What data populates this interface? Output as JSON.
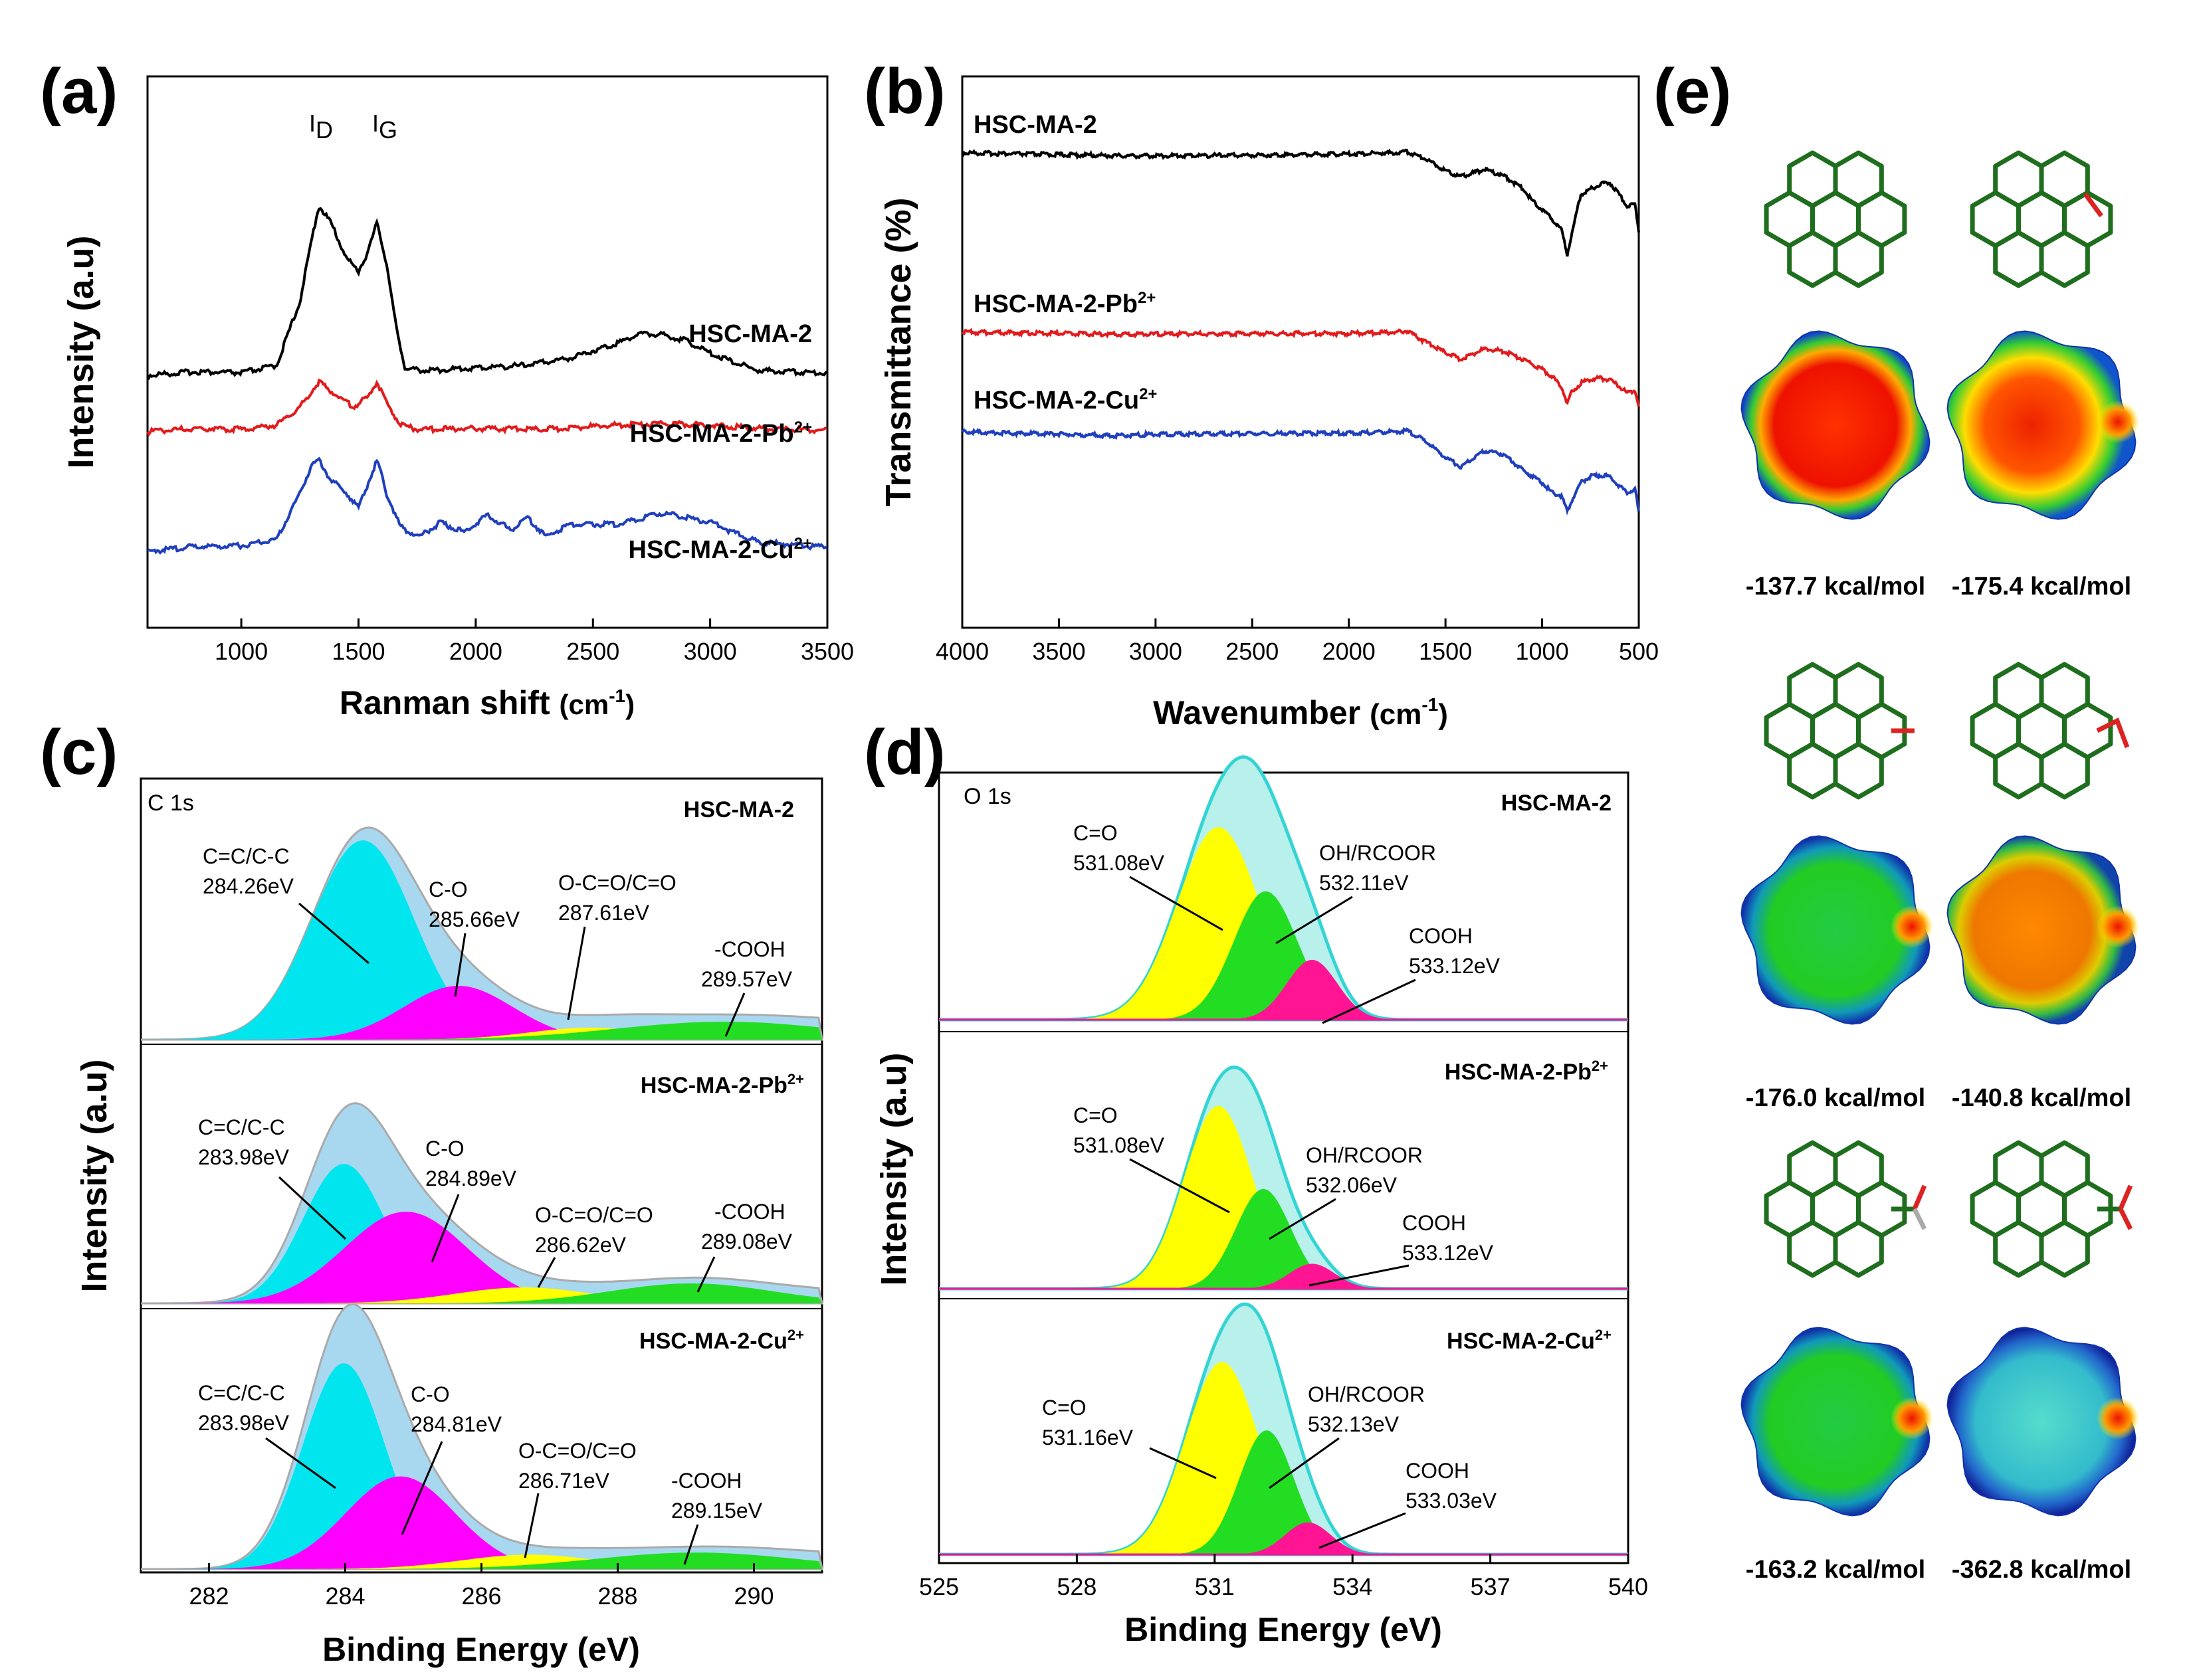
{
  "chart_data": [
    {
      "panel": "(a)",
      "type": "line",
      "xlabel": "Ranman shift",
      "xunit": "(cm",
      "xunit_exp": "-1",
      "xunit_close": ")",
      "ylabel": "Intensity (a.u)",
      "xlim": [
        600,
        3500
      ],
      "xticks": [
        "1000",
        "1500",
        "2000",
        "2500",
        "3000",
        "3500"
      ],
      "peak_d": "I",
      "peak_d_sub": "D",
      "peak_g": "I",
      "peak_g_sub": "G",
      "series": [
        {
          "name": "HSC-MA-2",
          "sup": "",
          "color": "#000000",
          "x": [
            600,
            800,
            1000,
            1150,
            1250,
            1300,
            1330,
            1380,
            1450,
            1500,
            1540,
            1580,
            1620,
            1660,
            1700,
            1800,
            2000,
            2200,
            2400,
            2600,
            2700,
            2800,
            2900,
            3000,
            3200,
            3500
          ],
          "y": [
            0,
            3,
            2,
            8,
            60,
            110,
            138,
            125,
            95,
            85,
            100,
            125,
            90,
            40,
            5,
            4,
            6,
            8,
            14,
            26,
            34,
            33,
            28,
            18,
            4,
            2
          ]
        },
        {
          "name": "HSC-MA-2-Pb",
          "sup": "2+",
          "color": "#e31a1c",
          "x": [
            600,
            800,
            1000,
            1150,
            1250,
            1330,
            1400,
            1480,
            1540,
            1580,
            1620,
            1680,
            1750,
            2000,
            2300,
            2600,
            2800,
            3000,
            3200,
            3500
          ],
          "y": [
            0,
            4,
            3,
            8,
            30,
            60,
            45,
            30,
            42,
            60,
            35,
            8,
            3,
            4,
            3,
            8,
            10,
            8,
            4,
            2
          ]
        },
        {
          "name": "HSC-MA-2-Cu",
          "sup": "2+",
          "color": "#1f3fbf",
          "x": [
            600,
            800,
            1000,
            1150,
            1250,
            1300,
            1330,
            1380,
            1450,
            1500,
            1540,
            1580,
            1620,
            1680,
            1760,
            1850,
            1950,
            2050,
            2150,
            2220,
            2300,
            2400,
            2600,
            2800,
            3000,
            3200,
            3500
          ],
          "y": [
            0,
            5,
            6,
            12,
            60,
            90,
            95,
            75,
            60,
            45,
            70,
            95,
            60,
            25,
            15,
            30,
            20,
            38,
            22,
            35,
            15,
            28,
            28,
            40,
            30,
            10,
            4
          ]
        }
      ]
    },
    {
      "panel": "(b)",
      "type": "line",
      "xlabel": "Wavenumber",
      "xunit": "(cm",
      "xunit_exp": "-1",
      "xunit_close": ")",
      "ylabel": "Transmittance (%)",
      "xlim": [
        4000,
        500
      ],
      "xreverse": true,
      "xticks": [
        "4000",
        "3500",
        "3000",
        "2500",
        "2000",
        "1500",
        "1000",
        "500"
      ],
      "series": [
        {
          "name": "HSC-MA-2",
          "sup": "",
          "color": "#000000",
          "x": [
            4000,
            3500,
            3200,
            3000,
            2500,
            2000,
            1750,
            1700,
            1600,
            1500,
            1420,
            1300,
            1200,
            1100,
            1050,
            950,
            900,
            870,
            850,
            800,
            700,
            650,
            600,
            560,
            520,
            500
          ],
          "y": [
            100,
            97,
            95,
            95,
            96,
            98,
            100,
            102,
            90,
            70,
            60,
            72,
            62,
            40,
            20,
            -10,
            -30,
            -70,
            -40,
            30,
            48,
            50,
            30,
            10,
            15,
            -30
          ]
        },
        {
          "name": "HSC-MA-2-Pb",
          "sup": "2+",
          "color": "#e31a1c",
          "x": [
            4000,
            3500,
            3200,
            3000,
            2500,
            2000,
            1750,
            1700,
            1600,
            1500,
            1420,
            1300,
            1200,
            1100,
            1000,
            950,
            900,
            870,
            850,
            800,
            750,
            700,
            650,
            600,
            560,
            520,
            500
          ],
          "y": [
            100,
            98,
            97,
            97,
            98,
            98,
            100,
            102,
            85,
            70,
            60,
            75,
            72,
            60,
            45,
            35,
            20,
            -5,
            10,
            25,
            30,
            32,
            30,
            20,
            10,
            15,
            -10
          ]
        },
        {
          "name": "HSC-MA-2-Cu",
          "sup": "2+",
          "color": "#1f3fbf",
          "x": [
            4000,
            3500,
            3200,
            3000,
            2500,
            2000,
            1750,
            1700,
            1600,
            1500,
            1420,
            1300,
            1200,
            1100,
            1000,
            950,
            900,
            870,
            850,
            800,
            750,
            700,
            650,
            600,
            560,
            520,
            500
          ],
          "y": [
            100,
            96,
            94,
            96,
            97,
            98,
            100,
            102,
            85,
            60,
            45,
            70,
            65,
            40,
            20,
            5,
            0,
            -25,
            -10,
            20,
            30,
            32,
            30,
            15,
            5,
            10,
            -25
          ]
        }
      ]
    },
    {
      "panel": "(c)",
      "type": "line",
      "title": "C 1s",
      "xlabel": "Binding Energy (eV)",
      "ylabel": "Intensity (a.u)",
      "xlim": [
        281,
        291
      ],
      "xticks": [
        "282",
        "284",
        "286",
        "288",
        "290"
      ],
      "subpanels": [
        {
          "sample": "HSC-MA-2",
          "sup": "",
          "envelope_peak": 284.3,
          "peaks": [
            {
              "label": "C=C/C-C",
              "value": "284.26eV",
              "center": 284.26,
              "height": 100,
              "width": 0.75,
              "color": "#00e5ee"
            },
            {
              "label": "C-O",
              "value": "285.66eV",
              "center": 285.66,
              "height": 27,
              "width": 0.8,
              "color": "#ff00ff"
            },
            {
              "label": "O-C=O/C=O",
              "value": "287.61eV",
              "center": 287.61,
              "height": 6,
              "width": 0.9,
              "color": "#ffff00"
            },
            {
              "label": "-COOH",
              "value": "289.57eV",
              "center": 289.57,
              "height": 9,
              "width": 1.6,
              "color": "#22dd22"
            }
          ]
        },
        {
          "sample": "HSC-MA-2-Pb",
          "sup": "2+",
          "envelope_peak": 284.1,
          "peaks": [
            {
              "label": "C=C/C-C",
              "value": "283.98eV",
              "center": 283.98,
              "height": 70,
              "width": 0.6,
              "color": "#00e5ee"
            },
            {
              "label": "C-O",
              "value": "284.89eV",
              "center": 284.89,
              "height": 46,
              "width": 0.9,
              "color": "#ff00ff"
            },
            {
              "label": "O-C=O/C=O",
              "value": "286.62eV",
              "center": 286.62,
              "height": 8,
              "width": 1.0,
              "color": "#ffff00"
            },
            {
              "label": "-COOH",
              "value": "289.08eV",
              "center": 289.08,
              "height": 10,
              "width": 1.2,
              "color": "#22dd22"
            }
          ]
        },
        {
          "sample": "HSC-MA-2-Cu",
          "sup": "2+",
          "envelope_peak": 284.0,
          "peaks": [
            {
              "label": "C=C/C-C",
              "value": "283.98eV",
              "center": 283.98,
              "height": 100,
              "width": 0.6,
              "color": "#00e5ee"
            },
            {
              "label": "C-O",
              "value": "284.81eV",
              "center": 284.81,
              "height": 45,
              "width": 0.8,
              "color": "#ff00ff"
            },
            {
              "label": "O-C=O/C=O",
              "value": "286.71eV",
              "center": 286.71,
              "height": 7,
              "width": 1.0,
              "color": "#ffff00"
            },
            {
              "label": "-COOH",
              "value": "289.15eV",
              "center": 289.15,
              "height": 8,
              "width": 1.5,
              "color": "#22dd22"
            }
          ]
        }
      ]
    },
    {
      "panel": "(d)",
      "type": "line",
      "title": "O 1s",
      "xlabel": "Binding Energy (eV)",
      "ylabel": "Intensity (a.u)",
      "xlim": [
        525,
        540
      ],
      "xticks": [
        "525",
        "528",
        "531",
        "534",
        "537",
        "540"
      ],
      "subpanels": [
        {
          "sample": "HSC-MA-2",
          "sup": "",
          "peaks": [
            {
              "label": "C=O",
              "value": "531.08eV",
              "center": 531.08,
              "height": 90,
              "width": 0.9,
              "color": "#ffff00"
            },
            {
              "label": "OH/RCOOR",
              "value": "532.11eV",
              "center": 532.11,
              "height": 60,
              "width": 0.7,
              "color": "#22dd22"
            },
            {
              "label": "COOH",
              "value": "533.12eV",
              "center": 533.12,
              "height": 28,
              "width": 0.55,
              "color": "#ff1493"
            }
          ]
        },
        {
          "sample": "HSC-MA-2-Pb",
          "sup": "2+",
          "peaks": [
            {
              "label": "C=O",
              "value": "531.08eV",
              "center": 531.08,
              "height": 88,
              "width": 0.75,
              "color": "#ffff00"
            },
            {
              "label": "OH/RCOOR",
              "value": "532.06eV",
              "center": 532.06,
              "height": 48,
              "width": 0.6,
              "color": "#22dd22"
            },
            {
              "label": "COOH",
              "value": "533.12eV",
              "center": 533.12,
              "height": 12,
              "width": 0.5,
              "color": "#ff1493"
            }
          ]
        },
        {
          "sample": "HSC-MA-2-Cu",
          "sup": "2+",
          "peaks": [
            {
              "label": "C=O",
              "value": "531.16eV",
              "center": 531.16,
              "height": 90,
              "width": 0.8,
              "color": "#ffff00"
            },
            {
              "label": "OH/RCOOR",
              "value": "532.13eV",
              "center": 532.13,
              "height": 58,
              "width": 0.6,
              "color": "#22dd22"
            },
            {
              "label": "COOH",
              "value": "533.03eV",
              "center": 533.03,
              "height": 15,
              "width": 0.5,
              "color": "#ff1493"
            }
          ]
        }
      ]
    },
    {
      "panel": "(e)",
      "type": "other",
      "structures": [
        {
          "energy": "-137.7 kcal/mol",
          "group": "none",
          "scheme": "red"
        },
        {
          "energy": "-175.4 kcal/mol",
          "group": "ether",
          "scheme": "red-yellow"
        },
        {
          "energy": "-176.0 kcal/mol",
          "group": "carbonyl",
          "scheme": "green"
        },
        {
          "energy": "-140.8 kcal/mol",
          "group": "hydroxyl",
          "scheme": "orange"
        },
        {
          "energy": "-163.2 kcal/mol",
          "group": "carboxyl",
          "scheme": "green"
        },
        {
          "energy": "-362.8 kcal/mol",
          "group": "carboxylate",
          "scheme": "cyan"
        }
      ]
    }
  ]
}
